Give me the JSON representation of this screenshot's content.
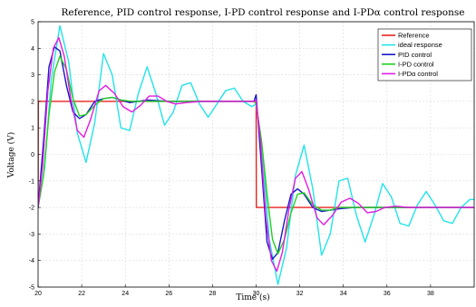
{
  "chart_data": {
    "type": "line",
    "title": "Reference, PID control response, I-PD control response and I-PDα control response",
    "xlabel": "Time (s)",
    "ylabel": "Voltage (V)",
    "xlim": [
      20,
      40
    ],
    "ylim": [
      -5,
      5
    ],
    "xticks": [
      "20",
      "22",
      "24",
      "26",
      "28",
      "30",
      "32",
      "34",
      "36",
      "38"
    ],
    "yticks": [
      "5",
      "4",
      "3",
      "2",
      "1",
      "0",
      "-1",
      "-2",
      "-3",
      "-4",
      "-5"
    ],
    "grid": true,
    "legend_position": "top-right",
    "series": [
      {
        "name": "Reference",
        "color": "#e8231e",
        "points": [
          [
            20,
            -2
          ],
          [
            20.01,
            2
          ],
          [
            30,
            2
          ],
          [
            30.01,
            -2
          ],
          [
            40,
            -2
          ]
        ]
      },
      {
        "name": "ideal response",
        "color": "#22e3e8",
        "points": [
          [
            20,
            -2
          ],
          [
            20.3,
            -0.5
          ],
          [
            20.6,
            2.8
          ],
          [
            21.0,
            4.85
          ],
          [
            21.4,
            3.5
          ],
          [
            21.8,
            0.8
          ],
          [
            22.2,
            -0.3
          ],
          [
            22.6,
            1.2
          ],
          [
            23.0,
            3.8
          ],
          [
            23.4,
            3.0
          ],
          [
            23.8,
            1.0
          ],
          [
            24.2,
            0.9
          ],
          [
            24.6,
            2.3
          ],
          [
            25.0,
            3.3
          ],
          [
            25.4,
            2.3
          ],
          [
            25.8,
            1.1
          ],
          [
            26.2,
            1.6
          ],
          [
            26.6,
            2.6
          ],
          [
            27.0,
            2.7
          ],
          [
            27.4,
            1.9
          ],
          [
            27.8,
            1.4
          ],
          [
            28.2,
            1.9
          ],
          [
            28.6,
            2.4
          ],
          [
            29.0,
            2.5
          ],
          [
            29.4,
            2.0
          ],
          [
            29.8,
            1.8
          ],
          [
            30.0,
            1.9
          ],
          [
            30.3,
            0.0
          ],
          [
            30.6,
            -3.2
          ],
          [
            31.0,
            -4.9
          ],
          [
            31.4,
            -3.5
          ],
          [
            31.8,
            -0.8
          ],
          [
            32.2,
            0.35
          ],
          [
            32.6,
            -1.3
          ],
          [
            33.0,
            -3.8
          ],
          [
            33.4,
            -3.0
          ],
          [
            33.8,
            -1.0
          ],
          [
            34.2,
            -0.9
          ],
          [
            34.6,
            -2.3
          ],
          [
            35.0,
            -3.3
          ],
          [
            35.4,
            -2.3
          ],
          [
            35.8,
            -1.1
          ],
          [
            36.2,
            -1.6
          ],
          [
            36.6,
            -2.6
          ],
          [
            37.0,
            -2.7
          ],
          [
            37.4,
            -1.9
          ],
          [
            37.8,
            -1.4
          ],
          [
            38.2,
            -1.9
          ],
          [
            38.6,
            -2.5
          ],
          [
            39.0,
            -2.6
          ],
          [
            39.4,
            -2.0
          ],
          [
            39.8,
            -1.7
          ],
          [
            40.0,
            -1.7
          ]
        ]
      },
      {
        "name": "PID control",
        "color": "#1818c8",
        "points": [
          [
            20,
            -2
          ],
          [
            20.25,
            0.5
          ],
          [
            20.5,
            3.3
          ],
          [
            20.75,
            4.05
          ],
          [
            21.0,
            3.9
          ],
          [
            21.3,
            2.6
          ],
          [
            21.6,
            1.6
          ],
          [
            21.9,
            1.35
          ],
          [
            22.2,
            1.5
          ],
          [
            22.6,
            2.0
          ],
          [
            23.0,
            2.1
          ],
          [
            23.4,
            2.15
          ],
          [
            23.8,
            2.05
          ],
          [
            24.2,
            1.95
          ],
          [
            24.6,
            2.0
          ],
          [
            25.0,
            2.05
          ],
          [
            26.0,
            2.0
          ],
          [
            29.9,
            2.0
          ],
          [
            30.0,
            2.25
          ],
          [
            30.25,
            -0.5
          ],
          [
            30.5,
            -3.3
          ],
          [
            30.75,
            -3.95
          ],
          [
            31.0,
            -3.7
          ],
          [
            31.3,
            -2.5
          ],
          [
            31.6,
            -1.5
          ],
          [
            31.9,
            -1.3
          ],
          [
            32.2,
            -1.5
          ],
          [
            32.6,
            -2.0
          ],
          [
            33.0,
            -2.15
          ],
          [
            33.4,
            -2.1
          ],
          [
            33.8,
            -2.05
          ],
          [
            34.5,
            -2.0
          ],
          [
            40.0,
            -2.0
          ]
        ]
      },
      {
        "name": "I-PD control",
        "color": "#22d022",
        "points": [
          [
            20,
            -2
          ],
          [
            20.25,
            -0.8
          ],
          [
            20.5,
            1.5
          ],
          [
            20.75,
            3.1
          ],
          [
            21.0,
            3.7
          ],
          [
            21.3,
            3.2
          ],
          [
            21.6,
            2.1
          ],
          [
            21.9,
            1.45
          ],
          [
            22.2,
            1.5
          ],
          [
            22.6,
            1.85
          ],
          [
            23.0,
            2.1
          ],
          [
            23.4,
            2.15
          ],
          [
            23.8,
            2.05
          ],
          [
            24.3,
            2.0
          ],
          [
            29.9,
            2.0
          ],
          [
            30.0,
            1.9
          ],
          [
            30.25,
            0.5
          ],
          [
            30.5,
            -1.5
          ],
          [
            30.75,
            -3.2
          ],
          [
            31.0,
            -3.75
          ],
          [
            31.3,
            -3.2
          ],
          [
            31.6,
            -2.2
          ],
          [
            31.9,
            -1.5
          ],
          [
            32.2,
            -1.45
          ],
          [
            32.6,
            -1.9
          ],
          [
            33.0,
            -2.1
          ],
          [
            33.4,
            -2.1
          ],
          [
            33.8,
            -2.0
          ],
          [
            40.0,
            -2.0
          ]
        ]
      },
      {
        "name": "I-PDα control",
        "color": "#e21ce2",
        "points": [
          [
            20,
            -2
          ],
          [
            20.2,
            -0.5
          ],
          [
            20.45,
            2.4
          ],
          [
            20.7,
            4.0
          ],
          [
            20.95,
            4.4
          ],
          [
            21.2,
            3.7
          ],
          [
            21.5,
            2.1
          ],
          [
            21.8,
            0.9
          ],
          [
            22.1,
            0.65
          ],
          [
            22.4,
            1.3
          ],
          [
            22.8,
            2.4
          ],
          [
            23.1,
            2.6
          ],
          [
            23.5,
            2.3
          ],
          [
            23.9,
            1.8
          ],
          [
            24.3,
            1.6
          ],
          [
            24.7,
            1.85
          ],
          [
            25.1,
            2.2
          ],
          [
            25.5,
            2.2
          ],
          [
            25.9,
            2.0
          ],
          [
            26.3,
            1.9
          ],
          [
            26.8,
            1.95
          ],
          [
            27.5,
            2.0
          ],
          [
            29.9,
            2.0
          ],
          [
            30.0,
            2.05
          ],
          [
            30.2,
            0.5
          ],
          [
            30.45,
            -2.4
          ],
          [
            30.7,
            -4.0
          ],
          [
            30.95,
            -4.4
          ],
          [
            31.2,
            -3.7
          ],
          [
            31.5,
            -2.1
          ],
          [
            31.8,
            -0.9
          ],
          [
            32.1,
            -0.65
          ],
          [
            32.4,
            -1.3
          ],
          [
            32.8,
            -2.4
          ],
          [
            33.1,
            -2.65
          ],
          [
            33.5,
            -2.3
          ],
          [
            33.9,
            -1.8
          ],
          [
            34.3,
            -1.65
          ],
          [
            34.7,
            -1.85
          ],
          [
            35.1,
            -2.2
          ],
          [
            35.5,
            -2.15
          ],
          [
            35.9,
            -2.0
          ],
          [
            36.4,
            -1.95
          ],
          [
            37.0,
            -2.0
          ],
          [
            40.0,
            -2.0
          ]
        ]
      }
    ]
  }
}
